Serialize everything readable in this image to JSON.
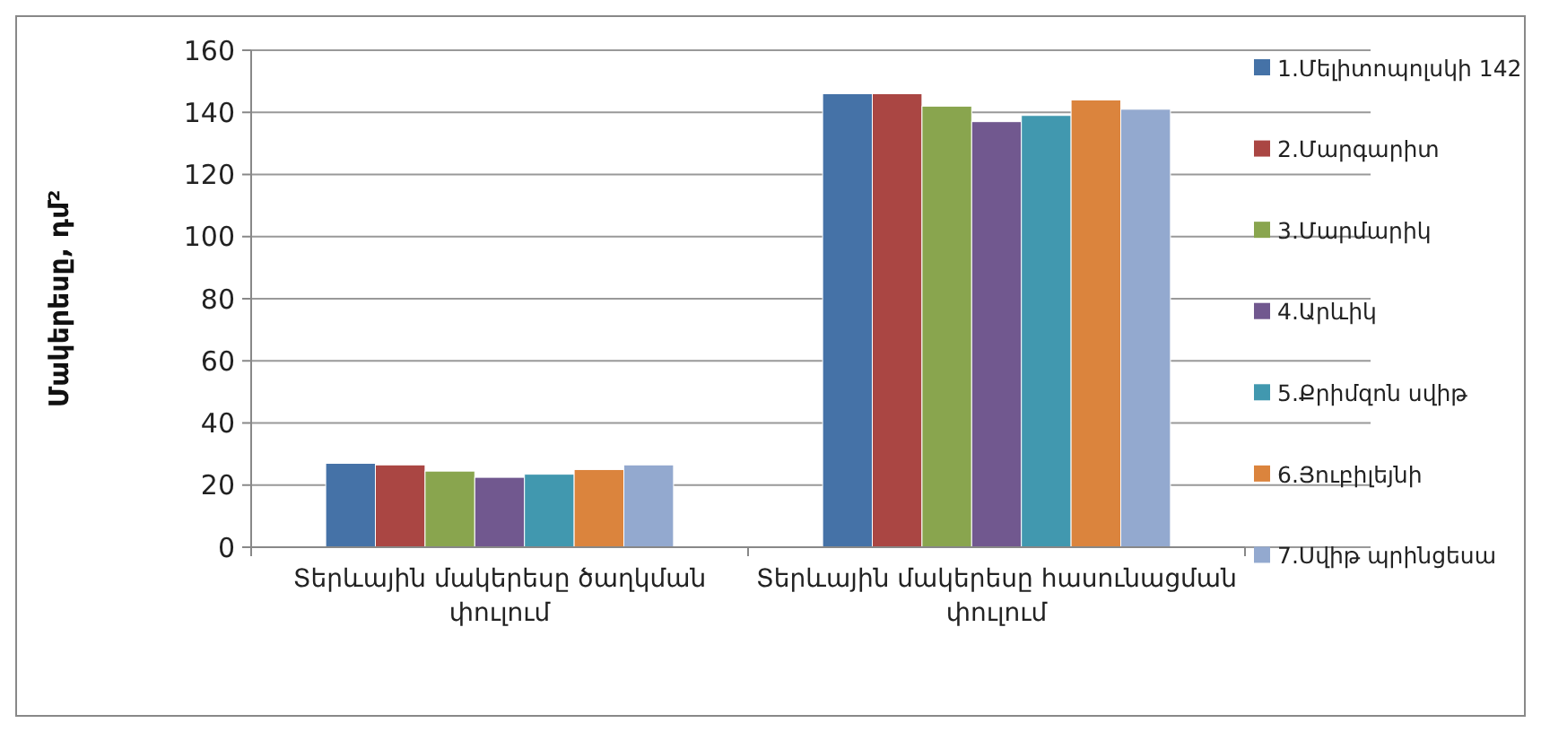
{
  "chart_data": {
    "type": "bar",
    "ylabel": "Մակերեսը, դմ²",
    "categories": [
      "Տերևային մակերեսը ծաղկման փուլում",
      "Տերևային մակերեսը հասունացման փուլում"
    ],
    "series": [
      {
        "name": "1.Մելիտոպոլսկի 142",
        "color": "#4572a7",
        "values": [
          27,
          146
        ]
      },
      {
        "name": "2.Մարգարիտ",
        "color": "#aa4643",
        "values": [
          26.5,
          146
        ]
      },
      {
        "name": "3.Մարմարիկ",
        "color": "#89a54e",
        "values": [
          24.5,
          142
        ]
      },
      {
        "name": "4.Արևիկ",
        "color": "#71588f",
        "values": [
          22.5,
          137
        ]
      },
      {
        "name": "5.Քրիմզոն սվիթ",
        "color": "#4198af",
        "values": [
          23.5,
          139
        ]
      },
      {
        "name": "6.Յուբիլեյնի",
        "color": "#db843d",
        "values": [
          25,
          144
        ]
      },
      {
        "name": "7.Սվիթ պրինցեսա",
        "color": "#93a9cf",
        "values": [
          26.5,
          141
        ]
      }
    ],
    "ylim": [
      0,
      160
    ],
    "yticks": [
      0,
      20,
      40,
      60,
      80,
      100,
      120,
      140,
      160
    ],
    "grid": "y",
    "legend": "right"
  }
}
